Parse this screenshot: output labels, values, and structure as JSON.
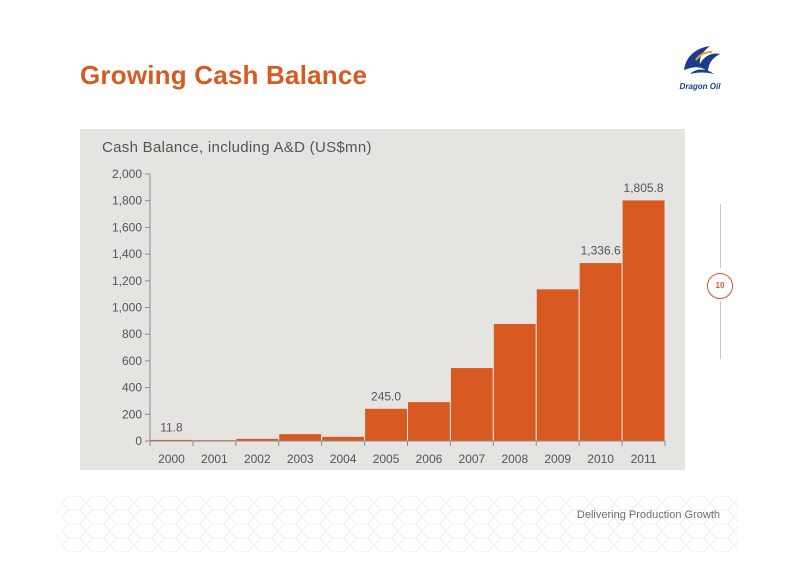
{
  "slide": {
    "title": "Growing Cash Balance",
    "logo_text": "Dragon Oil",
    "page_number": "10",
    "footer": "Delivering Production Growth"
  },
  "colors": {
    "accent": "#d95a21",
    "bar": "#d95a21",
    "panel": "#e6e4e1",
    "logo": "#1c3c8c"
  },
  "icons": {
    "logo": "dragon-oil-logo-icon",
    "page_badge": "circle-badge"
  },
  "chart_data": {
    "type": "bar",
    "title": "Cash Balance, including A&D (US$mn)",
    "categories": [
      "2000",
      "2001",
      "2002",
      "2003",
      "2004",
      "2005",
      "2006",
      "2007",
      "2008",
      "2009",
      "2010",
      "2011"
    ],
    "values": [
      11.8,
      10,
      20,
      55,
      35,
      245.0,
      295,
      550,
      880,
      1140,
      1336.6,
      1805.8
    ],
    "data_labels": {
      "0": "11.8",
      "5": "245.0",
      "10": "1,336.6",
      "11": "1,805.8"
    },
    "ylim": [
      0,
      2000
    ],
    "yticks": [
      0,
      200,
      400,
      600,
      800,
      1000,
      1200,
      1400,
      1600,
      1800,
      2000
    ],
    "ytick_labels": [
      "0",
      "200",
      "400",
      "600",
      "800",
      "1,000",
      "1,200",
      "1,400",
      "1,600",
      "1,800",
      "2,000"
    ],
    "grid": false
  }
}
